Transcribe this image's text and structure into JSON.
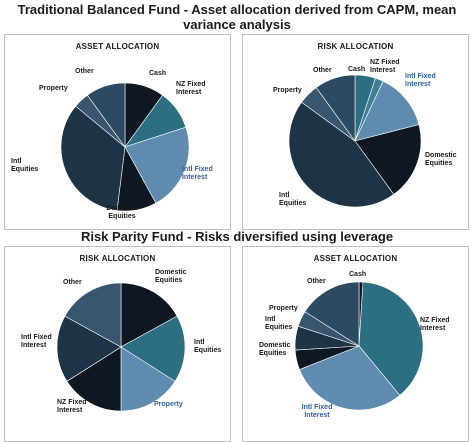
{
  "headings": {
    "top": "Traditional Balanced Fund - Asset allocation derived from CAPM, mean variance analysis",
    "bottom": "Risk Parity Fund - Risks diversified using leverage"
  },
  "colors": {
    "very_dark": "#0f1822",
    "dark_slate": "#1c3446",
    "slate": "#2c4a62",
    "mid_slate": "#3a556e",
    "teal": "#2c6f82",
    "light_blue": "#5f8bb0",
    "pale_blue": "#7ea0c0"
  },
  "chart_data": [
    {
      "type": "pie",
      "title": "ASSET ALLOCATION",
      "slices": [
        {
          "label": "Cash",
          "value": 10,
          "color": "#0f1822"
        },
        {
          "label": "NZ Fixed Interest",
          "value": 10,
          "color": "#2c6f82"
        },
        {
          "label": "Intl Fixed Interest",
          "value": 22,
          "color": "#5f8bb0"
        },
        {
          "label": "Domestic Equities",
          "value": 10,
          "color": "#0f1822"
        },
        {
          "label": "Intl Equities",
          "value": 34,
          "color": "#1c3446"
        },
        {
          "label": "Property",
          "value": 4,
          "color": "#3a556e"
        },
        {
          "label": "Other",
          "value": 10,
          "color": "#2c4a62"
        }
      ]
    },
    {
      "type": "pie",
      "title": "RISK ALLOCATION",
      "slices": [
        {
          "label": "Cash",
          "value": 5,
          "color": "#2c6f82"
        },
        {
          "label": "NZ Fixed Interest",
          "value": 2,
          "color": "#3f7f92"
        },
        {
          "label": "Intl Fixed Interest",
          "value": 14,
          "color": "#5f8bb0"
        },
        {
          "label": "Domestic Equities",
          "value": 19,
          "color": "#0f1822"
        },
        {
          "label": "Intl Equities",
          "value": 45,
          "color": "#1c3446"
        },
        {
          "label": "Property",
          "value": 5,
          "color": "#3a556e"
        },
        {
          "label": "Other",
          "value": 10,
          "color": "#2c4a62"
        }
      ]
    },
    {
      "type": "pie",
      "title": "RISK ALLOCATION",
      "slices": [
        {
          "label": "Domestic Equities",
          "value": 17,
          "color": "#0f1822"
        },
        {
          "label": "Intl Equities",
          "value": 17,
          "color": "#2c6f82"
        },
        {
          "label": "Property",
          "value": 16,
          "color": "#5f8bb0"
        },
        {
          "label": "NZ Fixed Interest",
          "value": 16,
          "color": "#0f1822"
        },
        {
          "label": "Intl Fixed Interest",
          "value": 17,
          "color": "#1c3446"
        },
        {
          "label": "Other",
          "value": 17,
          "color": "#3a556e"
        }
      ]
    },
    {
      "type": "pie",
      "title": "ASSET ALLOCATION",
      "slices": [
        {
          "label": "Cash",
          "value": 1,
          "color": "#0f1822"
        },
        {
          "label": "NZ Fixed Interest",
          "value": 38,
          "color": "#2c6f82"
        },
        {
          "label": "Intl Fixed Interest",
          "value": 30,
          "color": "#5f8bb0"
        },
        {
          "label": "Domestic Equities",
          "value": 5,
          "color": "#0f1822"
        },
        {
          "label": "Intl Equities",
          "value": 6,
          "color": "#1c3446"
        },
        {
          "label": "Property",
          "value": 4,
          "color": "#3a556e"
        },
        {
          "label": "Other",
          "value": 16,
          "color": "#2c4a62"
        }
      ]
    }
  ]
}
